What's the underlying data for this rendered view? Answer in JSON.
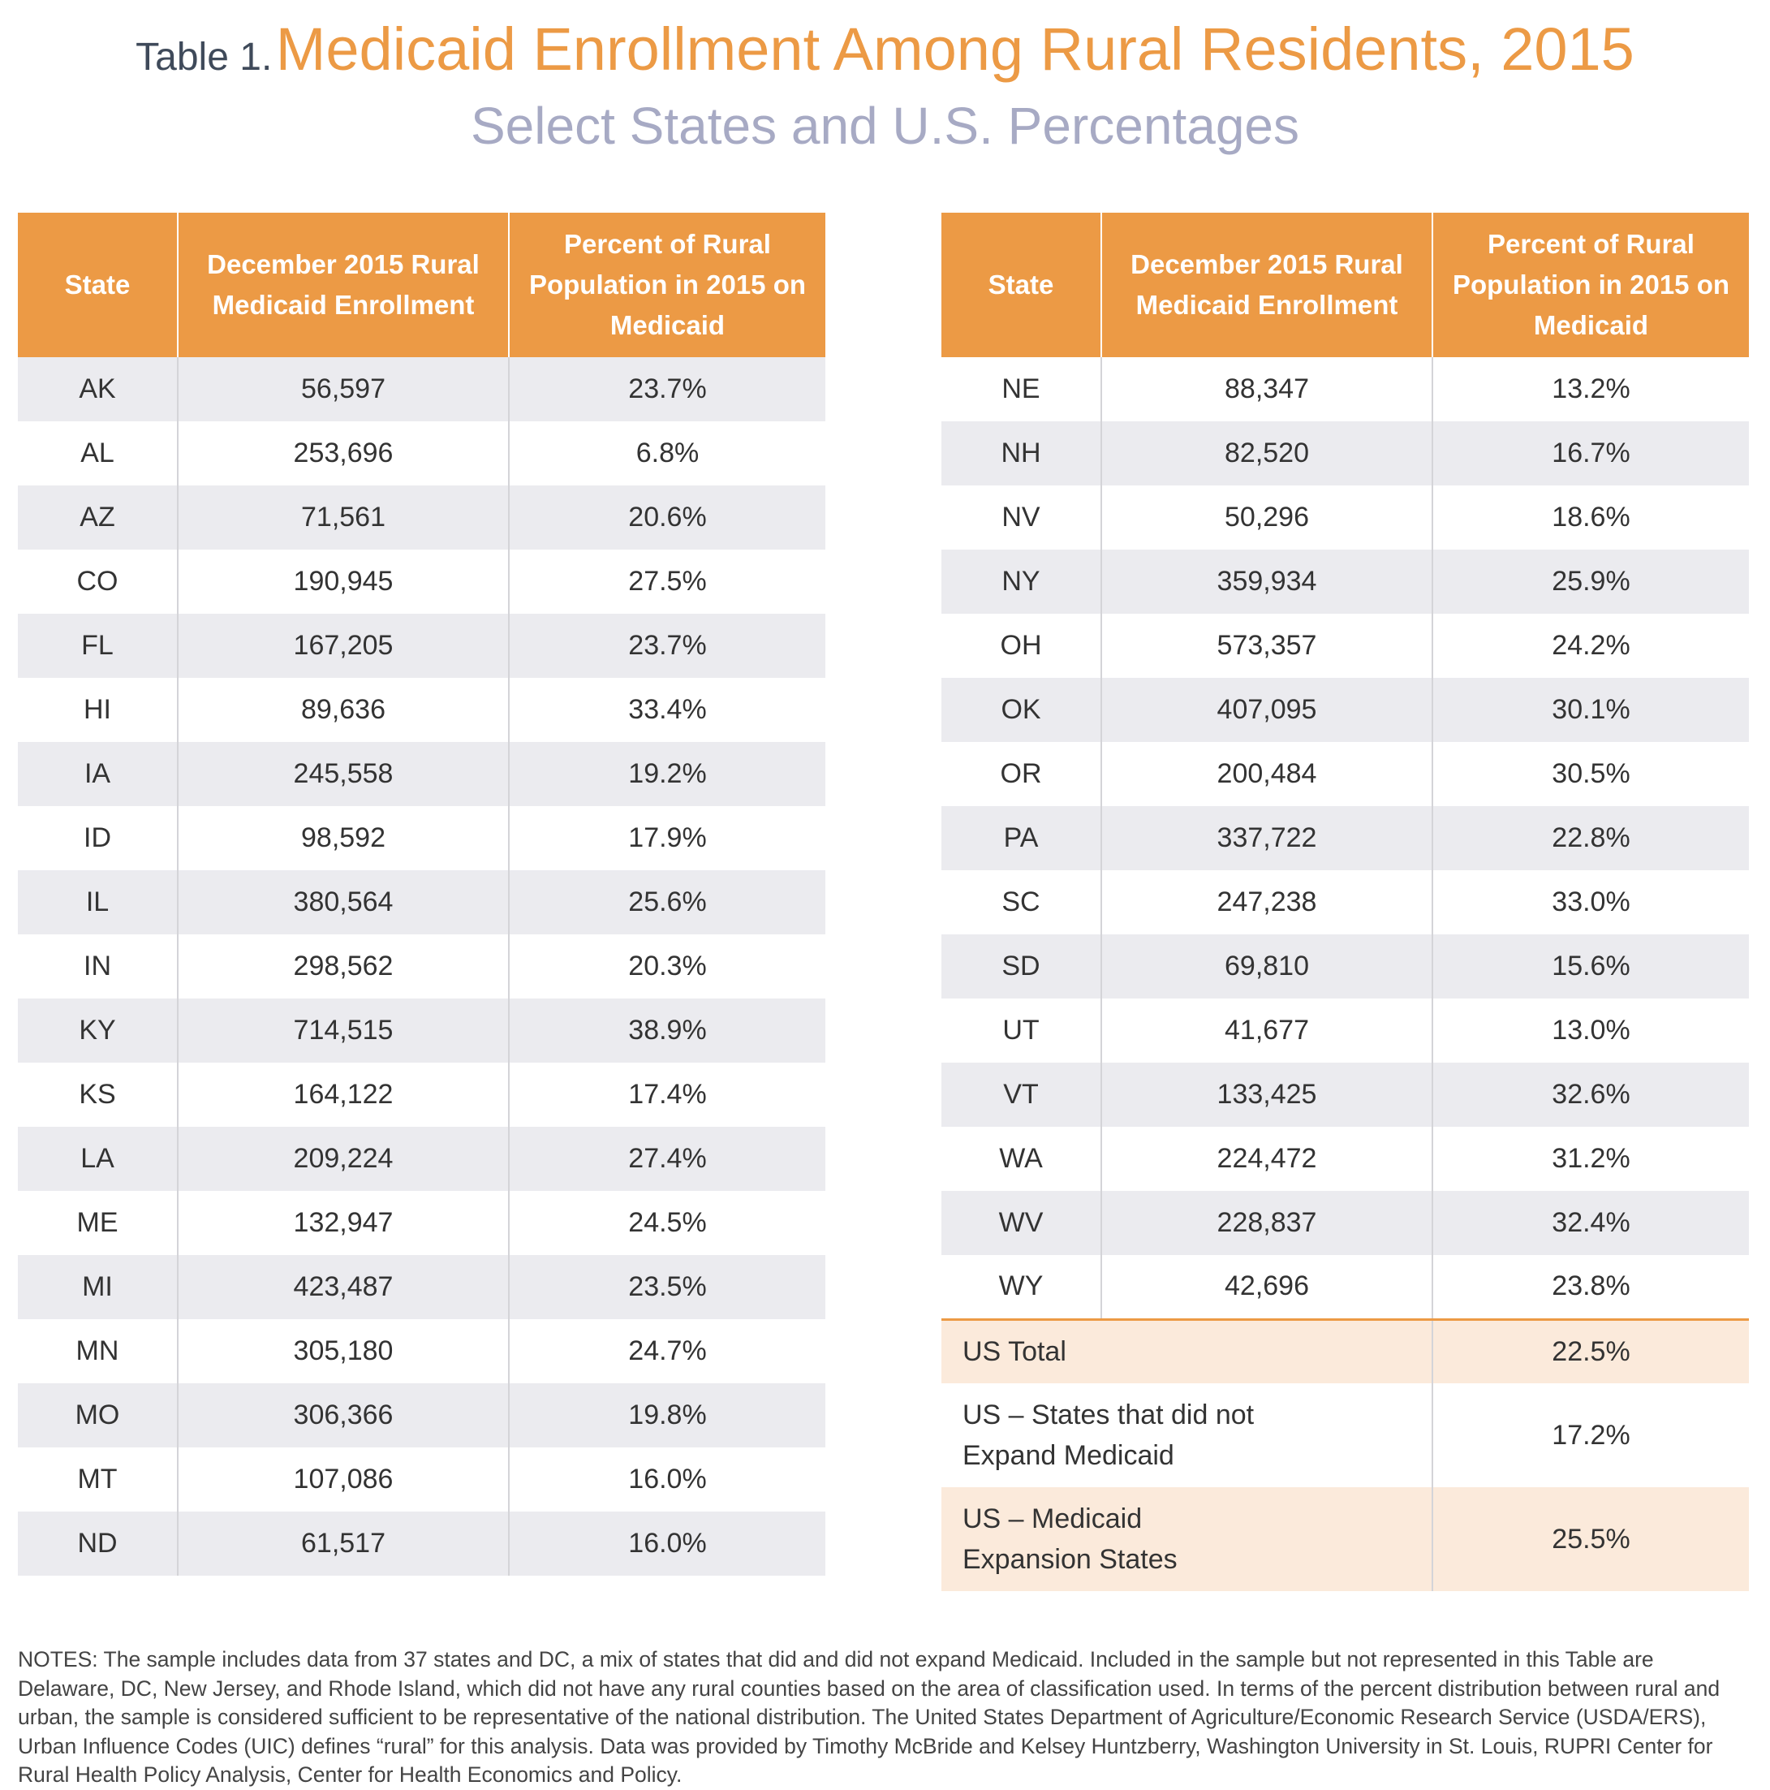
{
  "title": {
    "prefix": "Table 1.",
    "main": "Medicaid Enrollment Among Rural Residents, 2015",
    "subtitle": "Select States and U.S. Percentages"
  },
  "colors": {
    "header_orange": "#ec9a45",
    "subtitle_lavender": "#a7aac4",
    "row_stripe_gray": "#ebebef",
    "summary_peach": "#fbeadb"
  },
  "table_headers": {
    "state": "State",
    "enrollment": "December 2015 Rural Medicaid Enrollment",
    "percent": "Percent of Rural Population in 2015 on Medicaid"
  },
  "left_rows": [
    {
      "state": "AK",
      "enrollment": "56,597",
      "percent": "23.7%"
    },
    {
      "state": "AL",
      "enrollment": "253,696",
      "percent": "6.8%"
    },
    {
      "state": "AZ",
      "enrollment": "71,561",
      "percent": "20.6%"
    },
    {
      "state": "CO",
      "enrollment": "190,945",
      "percent": "27.5%"
    },
    {
      "state": "FL",
      "enrollment": "167,205",
      "percent": "23.7%"
    },
    {
      "state": "HI",
      "enrollment": "89,636",
      "percent": "33.4%"
    },
    {
      "state": "IA",
      "enrollment": "245,558",
      "percent": "19.2%"
    },
    {
      "state": "ID",
      "enrollment": "98,592",
      "percent": "17.9%"
    },
    {
      "state": "IL",
      "enrollment": "380,564",
      "percent": "25.6%"
    },
    {
      "state": "IN",
      "enrollment": "298,562",
      "percent": "20.3%"
    },
    {
      "state": "KY",
      "enrollment": "714,515",
      "percent": "38.9%"
    },
    {
      "state": "KS",
      "enrollment": "164,122",
      "percent": "17.4%"
    },
    {
      "state": "LA",
      "enrollment": "209,224",
      "percent": "27.4%"
    },
    {
      "state": "ME",
      "enrollment": "132,947",
      "percent": "24.5%"
    },
    {
      "state": "MI",
      "enrollment": "423,487",
      "percent": "23.5%"
    },
    {
      "state": "MN",
      "enrollment": "305,180",
      "percent": "24.7%"
    },
    {
      "state": "MO",
      "enrollment": "306,366",
      "percent": "19.8%"
    },
    {
      "state": "MT",
      "enrollment": "107,086",
      "percent": "16.0%"
    },
    {
      "state": "ND",
      "enrollment": "61,517",
      "percent": "16.0%"
    }
  ],
  "right_rows": [
    {
      "state": "NE",
      "enrollment": "88,347",
      "percent": "13.2%"
    },
    {
      "state": "NH",
      "enrollment": "82,520",
      "percent": "16.7%"
    },
    {
      "state": "NV",
      "enrollment": "50,296",
      "percent": "18.6%"
    },
    {
      "state": "NY",
      "enrollment": "359,934",
      "percent": "25.9%"
    },
    {
      "state": "OH",
      "enrollment": "573,357",
      "percent": "24.2%"
    },
    {
      "state": "OK",
      "enrollment": "407,095",
      "percent": "30.1%"
    },
    {
      "state": "OR",
      "enrollment": "200,484",
      "percent": "30.5%"
    },
    {
      "state": "PA",
      "enrollment": "337,722",
      "percent": "22.8%"
    },
    {
      "state": "SC",
      "enrollment": "247,238",
      "percent": "33.0%"
    },
    {
      "state": "SD",
      "enrollment": "69,810",
      "percent": "15.6%"
    },
    {
      "state": "UT",
      "enrollment": "41,677",
      "percent": "13.0%"
    },
    {
      "state": "VT",
      "enrollment": "133,425",
      "percent": "32.6%"
    },
    {
      "state": "WA",
      "enrollment": "224,472",
      "percent": "31.2%"
    },
    {
      "state": "WV",
      "enrollment": "228,837",
      "percent": "32.4%"
    },
    {
      "state": "WY",
      "enrollment": "42,696",
      "percent": "23.8%"
    }
  ],
  "summary_rows": [
    {
      "label_lines": [
        "US Total"
      ],
      "percent": "22.5%",
      "style": "peach"
    },
    {
      "label_lines": [
        "US – States that did not",
        "Expand Medicaid"
      ],
      "percent": "17.2%",
      "style": "plain"
    },
    {
      "label_lines": [
        "US – Medicaid",
        "Expansion States"
      ],
      "percent": "25.5%",
      "style": "peach"
    }
  ],
  "notes": "NOTES: The sample includes data from 37 states and DC, a mix of states that did and did not expand Medicaid. Included in the sample but not represented in this Table are Delaware, DC, New Jersey, and Rhode Island, which did not have any rural counties based on the area of classification used. In terms of the percent distribution between rural and urban, the sample is considered sufficient to be representative of the national distribution. The United States Department of Agriculture/Economic Research Service (USDA/ERS), Urban Influence Codes (UIC) defines “rural” for this analysis. Data was provided by Timothy McBride and Kelsey Huntzberry, Washington University in St. Louis, RUPRI Center for Rural Health Policy Analysis, Center for Health Economics and Policy."
}
